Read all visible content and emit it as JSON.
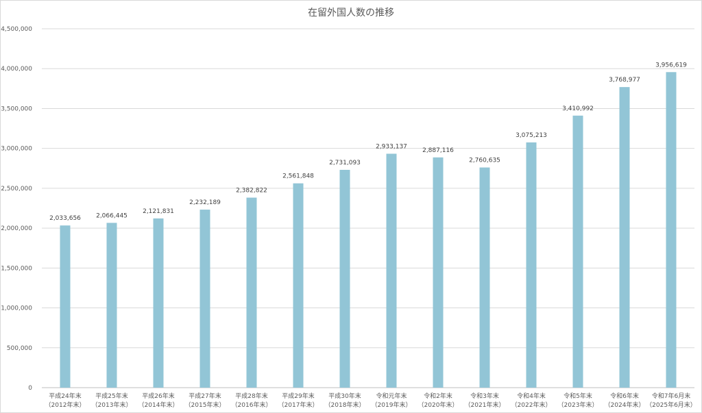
{
  "chart_data": {
    "type": "bar",
    "title": "在留外国人数の推移",
    "categories": [
      [
        "平成24年末",
        "（2012年末）"
      ],
      [
        "平成25年末",
        "（2013年末）"
      ],
      [
        "平成26年末",
        "（2014年末）"
      ],
      [
        "平成27年末",
        "（2015年末）"
      ],
      [
        "平成28年末",
        "（2016年末）"
      ],
      [
        "平成29年末",
        "（2017年末）"
      ],
      [
        "平成30年末",
        "（2018年末）"
      ],
      [
        "令和元年末",
        "（2019年末）"
      ],
      [
        "令和2年末",
        "（2020年末）"
      ],
      [
        "令和3年末",
        "（2021年末）"
      ],
      [
        "令和4年末",
        "（2022年末）"
      ],
      [
        "令和5年末",
        "（2023年末）"
      ],
      [
        "令和6年末",
        "（2024年末）"
      ],
      [
        "令和7年6月末",
        "（2025年6月末）"
      ]
    ],
    "values": [
      2033656,
      2066445,
      2121831,
      2232189,
      2382822,
      2561848,
      2731093,
      2933137,
      2887116,
      2760635,
      3075213,
      3410992,
      3768977,
      3956619
    ],
    "value_labels": [
      "2,033,656",
      "2,066,445",
      "2,121,831",
      "2,232,189",
      "2,382,822",
      "2,561,848",
      "2,731,093",
      "2,933,137",
      "2,887,116",
      "2,760,635",
      "3,075,213",
      "3,410,992",
      "3,768,977",
      "3,956,619"
    ],
    "ylim": [
      0,
      4500000
    ],
    "yticks": [
      0,
      500000,
      1000000,
      1500000,
      2000000,
      2500000,
      3000000,
      3500000,
      4000000,
      4500000
    ],
    "ytick_labels": [
      "0",
      "500,000",
      "1,000,000",
      "1,500,000",
      "2,000,000",
      "2,500,000",
      "3,000,000",
      "3,500,000",
      "4,000,000",
      "4,500,000"
    ],
    "xlabel": "",
    "ylabel": "",
    "grid": true,
    "legend": "none",
    "bar_color": "#92c5d6"
  }
}
